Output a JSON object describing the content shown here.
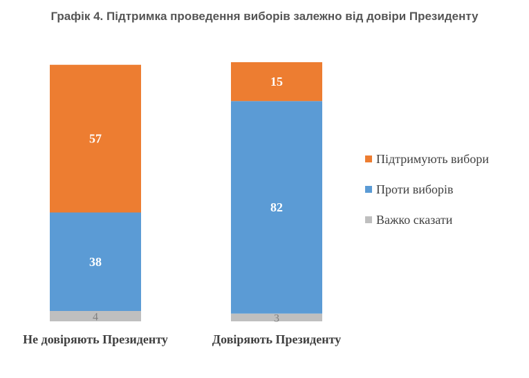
{
  "chart_data": {
    "type": "bar",
    "stacked": true,
    "title": "Графік 4. Підтримка проведення виборів залежно від довіри Президенту",
    "categories": [
      "Не довіряють Президенту",
      "Довіряють Президенту"
    ],
    "series": [
      {
        "name": "Важко сказати",
        "values": [
          4,
          3
        ],
        "color": "#bfbfbf"
      },
      {
        "name": "Проти виборів",
        "values": [
          38,
          82
        ],
        "color": "#5b9bd5"
      },
      {
        "name": "Підтримують вибори",
        "values": [
          57,
          15
        ],
        "color": "#ed7d31"
      }
    ],
    "legend_order": [
      "Підтримують вибори",
      "Проти виборів",
      "Важко сказати"
    ],
    "legend_position": "right",
    "ylim": [
      0,
      100
    ],
    "grid": false
  }
}
